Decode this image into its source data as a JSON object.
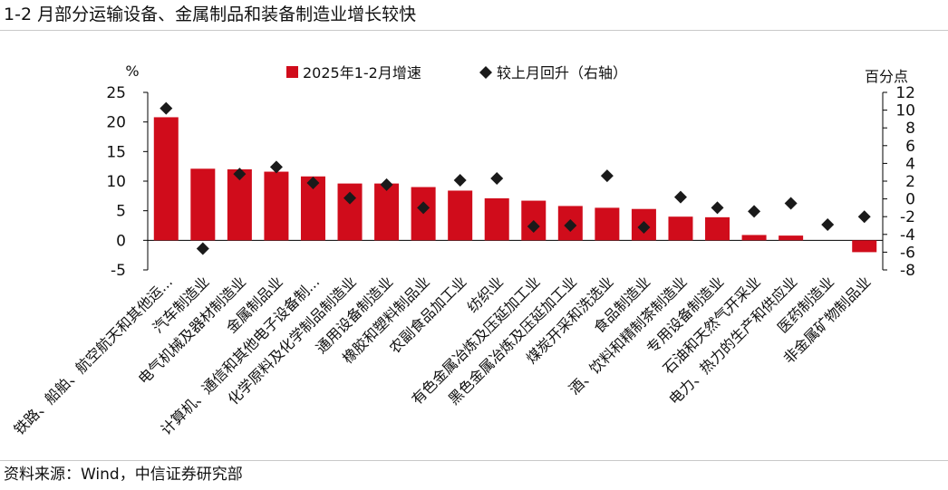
{
  "header": {
    "title": "1-2 月部分运输设备、金属制品和装备制造业增长较快"
  },
  "footer": {
    "source": "资料来源：Wind，中信证券研究部"
  },
  "colors": {
    "bar": "#d00c1b",
    "marker": "#1a1a1a",
    "axis": "#000000"
  },
  "chart_data": {
    "type": "bar",
    "categories": [
      "铁路、船舶、航空航天和其他运...",
      "汽车制造业",
      "电气机械及器材制造业",
      "金属制品业",
      "计算机、通信和其他电子设备制...",
      "化学原料及化学制品制造业",
      "通用设备制造业",
      "橡胶和塑料制品业",
      "农副食品加工业",
      "纺织业",
      "有色金属冶炼及压延加工业",
      "黑色金属冶炼及压延加工业",
      "煤炭开采和洗选业",
      "食品制造业",
      "酒、饮料和精制茶制造业",
      "专用设备制造业",
      "石油和天然气开采业",
      "电力、热力的生产和供应业",
      "医药制造业",
      "非金属矿物制品业"
    ],
    "series": [
      {
        "name": "2025年1-2月增速",
        "type": "bar",
        "axis": "left",
        "values": [
          20.8,
          12.1,
          12.0,
          11.6,
          10.8,
          9.6,
          9.6,
          9.0,
          8.4,
          7.1,
          6.7,
          5.8,
          5.5,
          5.3,
          4.0,
          3.9,
          0.9,
          0.8,
          0.0,
          -2.0
        ]
      },
      {
        "name": "较上月回升（右轴）",
        "type": "scatter",
        "axis": "right",
        "values": [
          10.2,
          -5.6,
          2.8,
          3.6,
          1.8,
          0.1,
          1.6,
          -1.0,
          2.1,
          2.3,
          -3.1,
          -3.0,
          2.6,
          -3.2,
          0.2,
          -1.0,
          -1.4,
          -0.5,
          -2.9,
          -2.0
        ]
      }
    ],
    "y_left": {
      "unit": "%",
      "min": -5,
      "max": 25,
      "ticks": [
        "25",
        "20",
        "15",
        "10",
        "5",
        "0",
        "-5"
      ],
      "tick_values": [
        25,
        20,
        15,
        10,
        5,
        0,
        -5
      ]
    },
    "y_right": {
      "unit": "百分点",
      "min": -8,
      "max": 12,
      "ticks": [
        "12",
        "10",
        "8",
        "6",
        "4",
        "2",
        "0",
        "-2",
        "-4",
        "-6",
        "-8"
      ],
      "tick_values": [
        12,
        10,
        8,
        6,
        4,
        2,
        0,
        -2,
        -4,
        -6,
        -8
      ]
    },
    "legend": {
      "placement": "top-center"
    },
    "grid": false
  }
}
